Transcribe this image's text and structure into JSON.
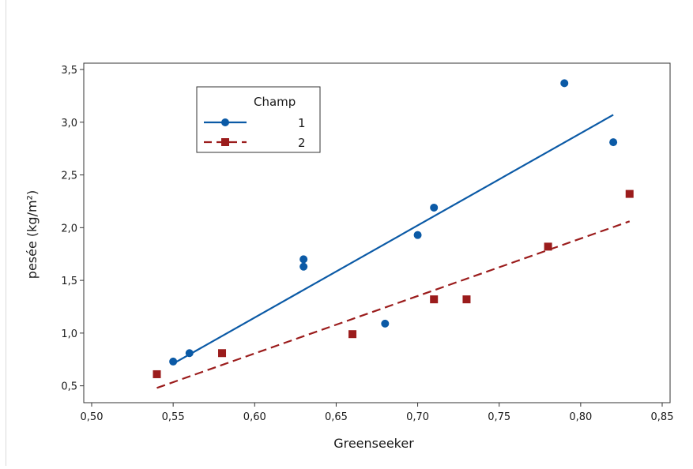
{
  "chart_data": {
    "type": "scatter",
    "xlabel": "Greenseeker",
    "ylabel": "pesée (kg/m²)",
    "xlim": [
      0.5,
      0.85
    ],
    "ylim": [
      0.4,
      3.5
    ],
    "x_ticks": [
      "0,50",
      "0,55",
      "0,60",
      "0,65",
      "0,70",
      "0,75",
      "0,80",
      "0,85"
    ],
    "y_ticks": [
      "0,5",
      "1,0",
      "1,5",
      "2,0",
      "2,5",
      "3,0",
      "3,5"
    ],
    "grid": false,
    "legend": {
      "title": "Champ",
      "placement": "top-left"
    },
    "series": [
      {
        "name": "1",
        "color": "#0b5aa6",
        "marker": "circle",
        "line_style": "solid",
        "points": [
          [
            0.55,
            0.73
          ],
          [
            0.56,
            0.81
          ],
          [
            0.63,
            1.7
          ],
          [
            0.63,
            1.63
          ],
          [
            0.68,
            1.09
          ],
          [
            0.7,
            1.93
          ],
          [
            0.71,
            2.19
          ],
          [
            0.79,
            3.37
          ],
          [
            0.82,
            2.81
          ]
        ],
        "fit": [
          [
            0.55,
            0.71
          ],
          [
            0.82,
            3.07
          ]
        ]
      },
      {
        "name": "2",
        "color": "#9b1c1c",
        "marker": "square",
        "line_style": "dashed",
        "points": [
          [
            0.54,
            0.61
          ],
          [
            0.58,
            0.81
          ],
          [
            0.66,
            0.99
          ],
          [
            0.71,
            1.32
          ],
          [
            0.73,
            1.32
          ],
          [
            0.78,
            1.82
          ],
          [
            0.83,
            2.32
          ]
        ],
        "fit": [
          [
            0.54,
            0.48
          ],
          [
            0.83,
            2.06
          ]
        ]
      }
    ]
  }
}
